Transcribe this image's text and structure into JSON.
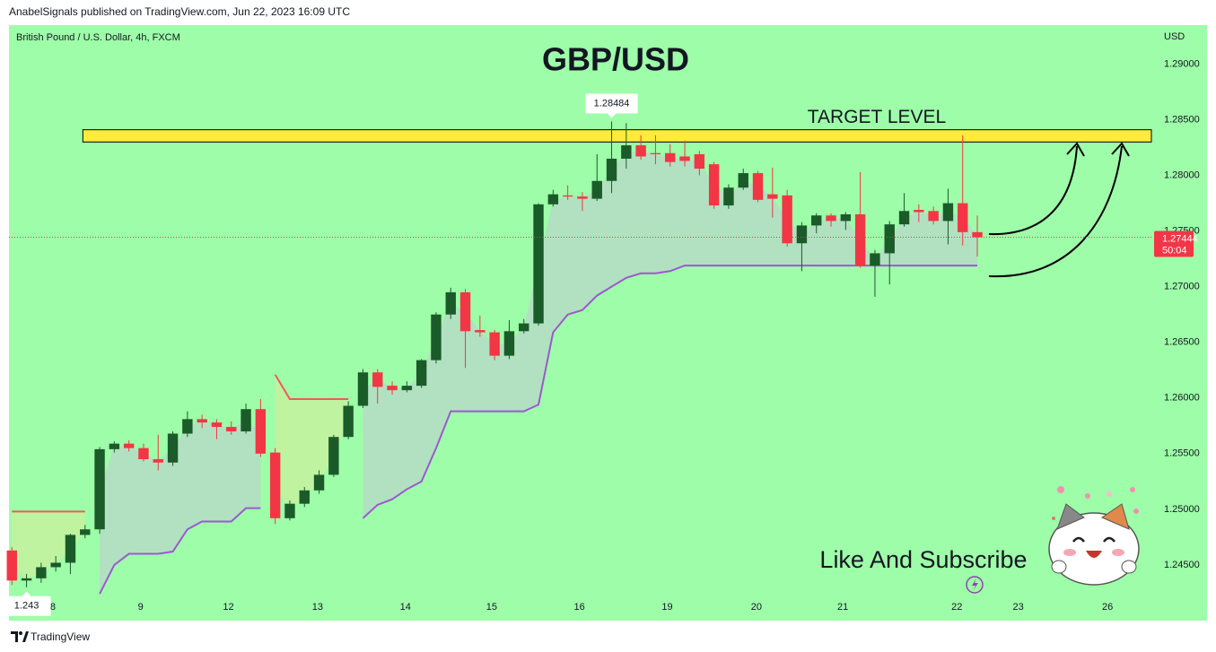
{
  "header": "AnabelSignals published on TradingView.com, Jun 22, 2023 16:09 UTC",
  "footer": "TradingView",
  "chart_data": {
    "type": "candlestick",
    "title": "GBP/USD",
    "symbol": "British Pound / U.S. Dollar, 4h, FXCM",
    "currency": "USD",
    "countdown": "50:04",
    "subtitle": "Like And Subscribe",
    "up_color": "#1b5b2a",
    "down_color": "#f23645",
    "background": "#9efda8",
    "grid": false,
    "xlim": [
      -0.2,
      77.9
    ],
    "ylim": [
      1.24,
      1.2935
    ],
    "yticks": [
      {
        "value": 1.245,
        "label": "1.24500"
      },
      {
        "value": 1.25,
        "label": "1.25000"
      },
      {
        "value": 1.255,
        "label": "1.25500"
      },
      {
        "value": 1.26,
        "label": "1.26000"
      },
      {
        "value": 1.265,
        "label": "1.26500"
      },
      {
        "value": 1.27,
        "label": "1.27000"
      },
      {
        "value": 1.275,
        "label": "1.27500"
      },
      {
        "value": 1.28,
        "label": "1.28000"
      },
      {
        "value": 1.285,
        "label": "1.28500"
      },
      {
        "value": 1.29,
        "label": "1.29000"
      }
    ],
    "xticks": [
      {
        "value": 2.8,
        "label": "8"
      },
      {
        "value": 8.8,
        "label": "9"
      },
      {
        "value": 14.8,
        "label": "12"
      },
      {
        "value": 20.9,
        "label": "13"
      },
      {
        "value": 26.9,
        "label": "14"
      },
      {
        "value": 32.8,
        "label": "15"
      },
      {
        "value": 38.8,
        "label": "16"
      },
      {
        "value": 44.8,
        "label": "19"
      },
      {
        "value": 50.9,
        "label": "20"
      },
      {
        "value": 56.8,
        "label": "21"
      },
      {
        "value": 64.6,
        "label": "22"
      },
      {
        "value": 68.8,
        "label": "23"
      },
      {
        "value": 74.9,
        "label": "26"
      }
    ],
    "open": [
      1.2463,
      1.2436,
      1.2438,
      1.2448,
      1.2452,
      1.2477,
      1.2482,
      1.2554,
      1.2559,
      1.2555,
      1.2545,
      1.2542,
      1.2568,
      1.2581,
      1.2578,
      1.2574,
      1.257,
      1.259,
      1.2551,
      1.2492,
      1.2505,
      1.2517,
      1.2531,
      1.2565,
      1.2593,
      1.2623,
      1.2611,
      1.2607,
      1.2611,
      1.2634,
      1.2675,
      1.2695,
      1.2661,
      1.2659,
      1.2638,
      1.266,
      1.2667,
      1.2774,
      1.2782,
      1.2781,
      1.2779,
      1.2795,
      1.2815,
      1.2827,
      1.282,
      1.282,
      1.2817,
      1.2819,
      1.281,
      1.2773,
      1.2789,
      1.2802,
      1.2783,
      1.2782,
      1.2739,
      1.2755,
      1.2764,
      1.2759,
      1.2765,
      1.2719,
      1.273,
      1.2756,
      1.2769,
      1.2768,
      1.2759,
      1.2775,
      1.2749
    ],
    "high": [
      1.2466,
      1.2442,
      1.2452,
      1.2458,
      1.2478,
      1.2486,
      1.2556,
      1.2561,
      1.2562,
      1.2559,
      1.2567,
      1.257,
      1.2588,
      1.2585,
      1.2581,
      1.2579,
      1.2595,
      1.2599,
      1.2555,
      1.2508,
      1.252,
      1.2535,
      1.2567,
      1.2597,
      1.2626,
      1.2626,
      1.2615,
      1.2615,
      1.2635,
      1.2677,
      1.2699,
      1.2698,
      1.2674,
      1.2661,
      1.267,
      1.2671,
      1.2775,
      1.2787,
      1.2791,
      1.2785,
      1.2819,
      1.28484,
      1.2847,
      1.2836,
      1.2836,
      1.2828,
      1.2831,
      1.2822,
      1.2812,
      1.2792,
      1.2806,
      1.2804,
      1.2807,
      1.2787,
      1.2758,
      1.2766,
      1.2766,
      1.2767,
      1.2803,
      1.2733,
      1.2759,
      1.2784,
      1.2774,
      1.2772,
      1.2788,
      1.2836,
      1.2764
    ],
    "low": [
      1.2432,
      1.243,
      1.2434,
      1.2444,
      1.2442,
      1.2474,
      1.2478,
      1.2551,
      1.2552,
      1.2543,
      1.2535,
      1.2539,
      1.2565,
      1.2573,
      1.2563,
      1.2567,
      1.2568,
      1.2547,
      1.24868,
      1.249,
      1.2502,
      1.2514,
      1.2529,
      1.2563,
      1.2591,
      1.2595,
      1.2603,
      1.2605,
      1.2609,
      1.2631,
      1.2671,
      1.2627,
      1.2655,
      1.2634,
      1.2635,
      1.2658,
      1.2665,
      1.2772,
      1.2778,
      1.2768,
      1.2777,
      1.2784,
      1.2806,
      1.2814,
      1.281,
      1.2808,
      1.2808,
      1.28,
      1.277,
      1.277,
      1.2787,
      1.2776,
      1.2762,
      1.2736,
      1.2714,
      1.2748,
      1.2754,
      1.2751,
      1.2717,
      1.2691,
      1.2702,
      1.2754,
      1.2758,
      1.2756,
      1.2738,
      1.2737,
      1.2727
    ],
    "close": [
      1.2436,
      1.2438,
      1.2448,
      1.2452,
      1.2477,
      1.2482,
      1.2554,
      1.2559,
      1.2555,
      1.2545,
      1.2542,
      1.2568,
      1.2581,
      1.2578,
      1.2574,
      1.257,
      1.259,
      1.255,
      1.2492,
      1.2505,
      1.2517,
      1.2531,
      1.2565,
      1.2593,
      1.2623,
      1.261,
      1.2607,
      1.2611,
      1.2634,
      1.2675,
      1.2695,
      1.266,
      1.2659,
      1.2638,
      1.266,
      1.2667,
      1.2774,
      1.2783,
      1.2781,
      1.2779,
      1.2795,
      1.2815,
      1.2827,
      1.2817,
      1.2819,
      1.2812,
      1.2813,
      1.2806,
      1.2773,
      1.2789,
      1.2802,
      1.2778,
      1.2779,
      1.2739,
      1.2755,
      1.2764,
      1.2759,
      1.2765,
      1.2719,
      1.273,
      1.2756,
      1.2768,
      1.2767,
      1.2759,
      1.2775,
      1.2749,
      1.27444
    ],
    "trail_up": {
      "color": "#9b59d0",
      "fill": "rgba(200,190,225,0.45)",
      "values": [
        null,
        null,
        null,
        null,
        null,
        null,
        1.2424,
        1.245,
        1.246,
        1.246,
        1.246,
        1.2462,
        1.2482,
        1.2489,
        1.2489,
        1.2489,
        1.2501,
        1.2501,
        null,
        null,
        null,
        null,
        null,
        null,
        1.2492,
        1.2504,
        1.2509,
        1.2518,
        1.2525,
        1.2555,
        1.2588,
        1.2588,
        1.2588,
        1.2588,
        1.2588,
        1.2588,
        1.2594,
        1.2659,
        1.2675,
        1.2679,
        1.2692,
        1.27,
        1.2708,
        1.2712,
        1.2712,
        1.2714,
        1.2719,
        1.2719,
        1.2719,
        1.2719,
        1.2719,
        1.2719,
        1.2719,
        1.2719,
        1.2719,
        1.2719,
        1.2719,
        1.2719,
        1.2719,
        1.2719,
        1.2719,
        1.2719,
        1.2719,
        1.2719,
        1.2719,
        1.2719,
        1.2719
      ]
    },
    "trail_down": {
      "color": "#f05a5a",
      "fill": "rgba(230,230,150,0.45)",
      "values": [
        1.2498,
        1.2498,
        1.2498,
        1.2498,
        1.2498,
        1.2498,
        null,
        null,
        null,
        null,
        null,
        null,
        null,
        null,
        null,
        null,
        null,
        null,
        1.2621,
        1.2599,
        1.2599,
        1.2599,
        1.2599,
        1.2599,
        null,
        null,
        null,
        null,
        null,
        null,
        null,
        null,
        null,
        null,
        null,
        null,
        null,
        null,
        null,
        null,
        null,
        null,
        null,
        null,
        null,
        null,
        null,
        null,
        null,
        null,
        null,
        null,
        null,
        null,
        null,
        null,
        null,
        null,
        null,
        null,
        null,
        null,
        null,
        null,
        null,
        null,
        null
      ]
    },
    "target_zone": {
      "label": "TARGET LEVEL",
      "color": "#ffeb3b",
      "xlim": [
        4.85,
        77.9
      ],
      "ylim": [
        1.283,
        1.2841
      ]
    }
  }
}
